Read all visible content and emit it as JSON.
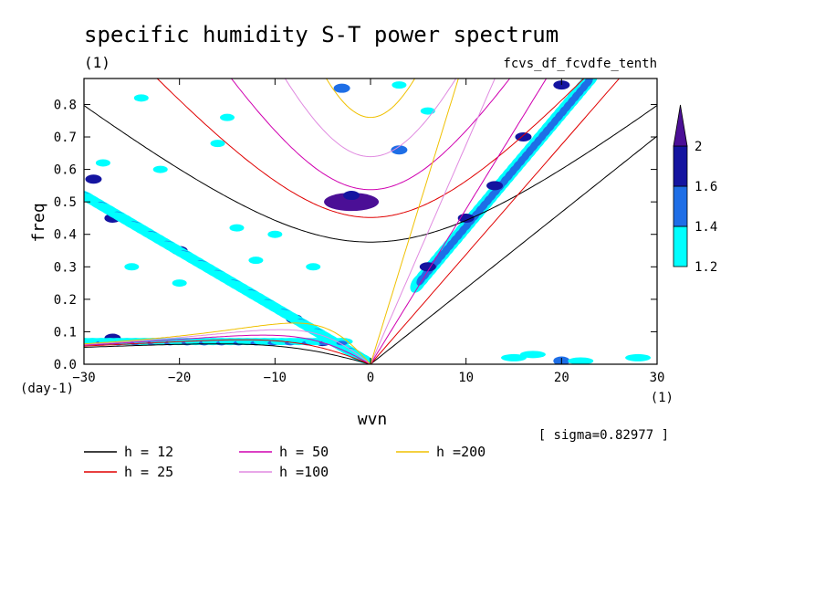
{
  "chart_data": {
    "type": "contour",
    "title": "specific humidity S-T power spectrum",
    "units_label": "(1)",
    "run_label": "fcvs_df_fcvdfe_tenth",
    "xlabel": "wvn",
    "ylabel": "freq",
    "x_unit": "(1)",
    "y_unit": "(day-1)",
    "sigma_text": "[ sigma=0.82977 ]",
    "xlim": [
      -30,
      30
    ],
    "ylim": [
      0,
      0.88
    ],
    "x_ticks": [
      -30,
      -20,
      -10,
      0,
      10,
      20,
      30
    ],
    "x_tick_labels": [
      "−30",
      "−20",
      "−10",
      "0",
      "10",
      "20",
      "30"
    ],
    "y_ticks": [
      0,
      0.1,
      0.2,
      0.3,
      0.4,
      0.5,
      0.6,
      0.7,
      0.8
    ],
    "y_tick_labels": [
      "0.0",
      "0.1",
      "0.2",
      "0.3",
      "0.4",
      "0.5",
      "0.6",
      "0.7",
      "0.8"
    ],
    "colorbar": {
      "levels": [
        1.2,
        1.4,
        1.6,
        2
      ],
      "level_labels": [
        "1.2",
        "1.4",
        "1.6",
        "2"
      ],
      "colors": [
        "#00ffff",
        "#1e6ee6",
        "#1414a0",
        "#4b0f96"
      ]
    },
    "contour_blobs": [
      {
        "x": -2,
        "y": 0.5,
        "level": 3
      },
      {
        "x": -2,
        "y": 0.52,
        "level": 2
      },
      {
        "x": 6,
        "y": 0.3,
        "level": 2
      },
      {
        "x": 10,
        "y": 0.45,
        "level": 2
      },
      {
        "x": 13,
        "y": 0.55,
        "level": 2
      },
      {
        "x": 16,
        "y": 0.7,
        "level": 2
      },
      {
        "x": 20,
        "y": 0.86,
        "level": 2
      },
      {
        "x": -29,
        "y": 0.57,
        "level": 2
      },
      {
        "x": -27,
        "y": 0.45,
        "level": 2
      },
      {
        "x": -20,
        "y": 0.35,
        "level": 2
      },
      {
        "x": -8,
        "y": 0.14,
        "level": 2
      },
      {
        "x": -5,
        "y": 0.07,
        "level": 2
      },
      {
        "x": -27,
        "y": 0.08,
        "level": 2
      },
      {
        "x": 20,
        "y": 0.01,
        "level": 1
      },
      {
        "x": -3,
        "y": 0.85,
        "level": 1
      },
      {
        "x": 3,
        "y": 0.66,
        "level": 1
      }
    ],
    "series": [
      {
        "name": "h = 12",
        "color": "#000000",
        "h": 12
      },
      {
        "name": "h = 25",
        "color": "#e00000",
        "h": 25
      },
      {
        "name": "h = 50",
        "color": "#d000b0",
        "h": 50
      },
      {
        "name": "h =100",
        "color": "#e08ae0",
        "h": 100
      },
      {
        "name": "h =200",
        "color": "#f0c000",
        "h": 200
      }
    ]
  }
}
